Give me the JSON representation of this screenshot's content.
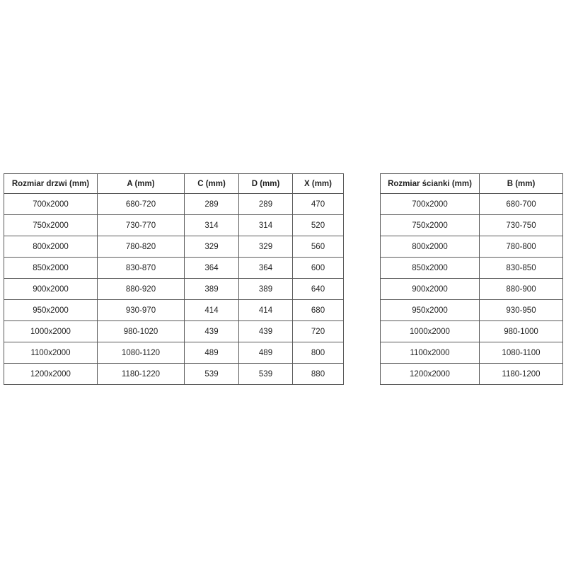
{
  "colors": {
    "background": "#ffffff",
    "table_border": "#595959",
    "text": "#1f1f1f"
  },
  "tables": [
    {
      "name": "door-sizes-table",
      "headers": [
        "Rozmiar drzwi (mm)",
        "A (mm)",
        "C (mm)",
        "D (mm)",
        "X (mm)"
      ],
      "rows": [
        [
          "700x2000",
          "680-720",
          "289",
          "289",
          "470"
        ],
        [
          "750x2000",
          "730-770",
          "314",
          "314",
          "520"
        ],
        [
          "800x2000",
          "780-820",
          "329",
          "329",
          "560"
        ],
        [
          "850x2000",
          "830-870",
          "364",
          "364",
          "600"
        ],
        [
          "900x2000",
          "880-920",
          "389",
          "389",
          "640"
        ],
        [
          "950x2000",
          "930-970",
          "414",
          "414",
          "680"
        ],
        [
          "1000x2000",
          "980-1020",
          "439",
          "439",
          "720"
        ],
        [
          "1100x2000",
          "1080-1120",
          "489",
          "489",
          "800"
        ],
        [
          "1200x2000",
          "1180-1220",
          "539",
          "539",
          "880"
        ]
      ]
    },
    {
      "name": "wall-sizes-table",
      "headers": [
        "Rozmiar ścianki (mm)",
        "B (mm)"
      ],
      "rows": [
        [
          "700x2000",
          "680-700"
        ],
        [
          "750x2000",
          "730-750"
        ],
        [
          "800x2000",
          "780-800"
        ],
        [
          "850x2000",
          "830-850"
        ],
        [
          "900x2000",
          "880-900"
        ],
        [
          "950x2000",
          "930-950"
        ],
        [
          "1000x2000",
          "980-1000"
        ],
        [
          "1100x2000",
          "1080-1100"
        ],
        [
          "1200x2000",
          "1180-1200"
        ]
      ]
    }
  ]
}
